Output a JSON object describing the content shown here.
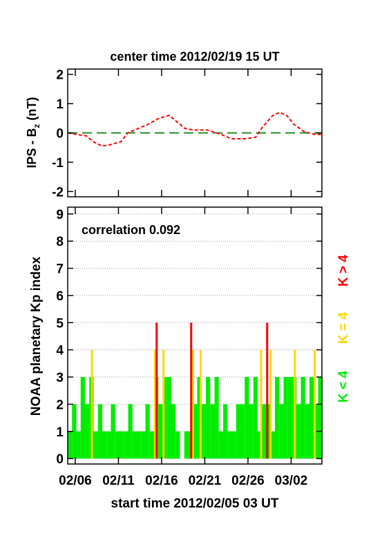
{
  "chart_data": [
    {
      "type": "line",
      "title": "center time 2012/02/19 15 UT",
      "ylabel_parts": [
        "IPS - B",
        "z",
        " (nT)"
      ],
      "xlim": [
        0,
        29.44
      ],
      "xticks": [
        0.875,
        5.875,
        10.875,
        15.875,
        20.875,
        25.875
      ],
      "ylim": [
        -2.18,
        2.18
      ],
      "yticks": [
        -2,
        -1,
        0,
        1,
        2
      ],
      "zero_line": {
        "value": 0,
        "color": "#1f8c1f"
      },
      "series": [
        {
          "color": "#ff0000",
          "x": [
            0,
            0.96,
            2.16,
            2.96,
            4,
            4.96,
            6.16,
            6.96,
            8.16,
            9.36,
            10.56,
            11.76,
            12.56,
            13.6,
            14.56,
            16.16,
            17.76,
            18.96,
            20.56,
            21.76,
            22.56,
            23.76,
            24.56,
            25.36,
            26.16,
            27.36,
            28.56,
            29.44
          ],
          "values": [
            0,
            -0.05,
            -0.1,
            -0.3,
            -0.45,
            -0.4,
            -0.3,
            0,
            0.15,
            0.3,
            0.5,
            0.6,
            0.4,
            0.15,
            0.1,
            0.1,
            -0.05,
            -0.2,
            -0.2,
            -0.15,
            0.2,
            0.6,
            0.7,
            0.6,
            0.3,
            0.05,
            -0.05,
            -0.05
          ]
        }
      ]
    },
    {
      "type": "bar",
      "annotation": "correlation 0.092",
      "ylabel": "NOAA planetary Kp index",
      "xlabel": "start time 2012/02/05 03 UT",
      "xlim": [
        0,
        29.44
      ],
      "xticks": [
        {
          "value": 0.875,
          "label": "02/06"
        },
        {
          "value": 5.875,
          "label": "02/11"
        },
        {
          "value": 10.875,
          "label": "02/16"
        },
        {
          "value": 15.875,
          "label": "02/21"
        },
        {
          "value": 20.875,
          "label": "02/26"
        },
        {
          "value": 25.875,
          "label": "03/02"
        }
      ],
      "ylim": [
        -0.2,
        9.25
      ],
      "yticks": [
        0,
        1,
        2,
        3,
        4,
        5,
        6,
        7,
        8,
        9
      ],
      "grid": true,
      "series": [
        {
          "name": "K < 4",
          "color": "#00ee00",
          "x": [
            0,
            0.5,
            1,
            1.5,
            2,
            2.5,
            3,
            3.5,
            4,
            4.5,
            5,
            5.5,
            6,
            6.5,
            7,
            7.5,
            8,
            8.5,
            9,
            9.5,
            10,
            10.5,
            11,
            11.5,
            12,
            12.5,
            13,
            13.5,
            14,
            14.5,
            15,
            15.5,
            16,
            16.5,
            17,
            17.5,
            18,
            18.5,
            19,
            19.5,
            20,
            20.5,
            21,
            21.5,
            22,
            22.5,
            23,
            23.5,
            24,
            24.5,
            25,
            25.5,
            26,
            26.5,
            27,
            27.5,
            28,
            28.5,
            29
          ],
          "values": [
            1,
            2,
            1,
            3,
            2,
            3,
            1,
            2,
            1,
            1,
            2,
            1,
            1,
            1,
            2,
            1,
            1,
            1,
            2,
            1,
            3,
            2,
            3,
            3,
            2,
            1,
            0,
            1,
            1,
            2,
            3,
            2,
            3,
            2,
            3,
            1,
            2,
            1,
            1,
            2,
            2,
            3,
            2,
            3,
            1,
            2,
            2,
            1,
            3,
            2,
            3,
            3,
            3,
            2,
            3,
            2,
            3,
            2,
            3
          ]
        },
        {
          "name": "K = 4",
          "color": "#ffd700",
          "x": [
            2.8,
            10.1,
            11.1,
            14.5,
            15.4,
            22.4,
            23.5,
            26.3,
            28.6
          ],
          "values": [
            4,
            4,
            4,
            4,
            4,
            4,
            4,
            4,
            4
          ]
        },
        {
          "name": "K > 4",
          "color": "#ff0000",
          "x": [
            10.3,
            14.3,
            23.1
          ],
          "values": [
            5,
            5,
            5
          ]
        }
      ]
    }
  ]
}
